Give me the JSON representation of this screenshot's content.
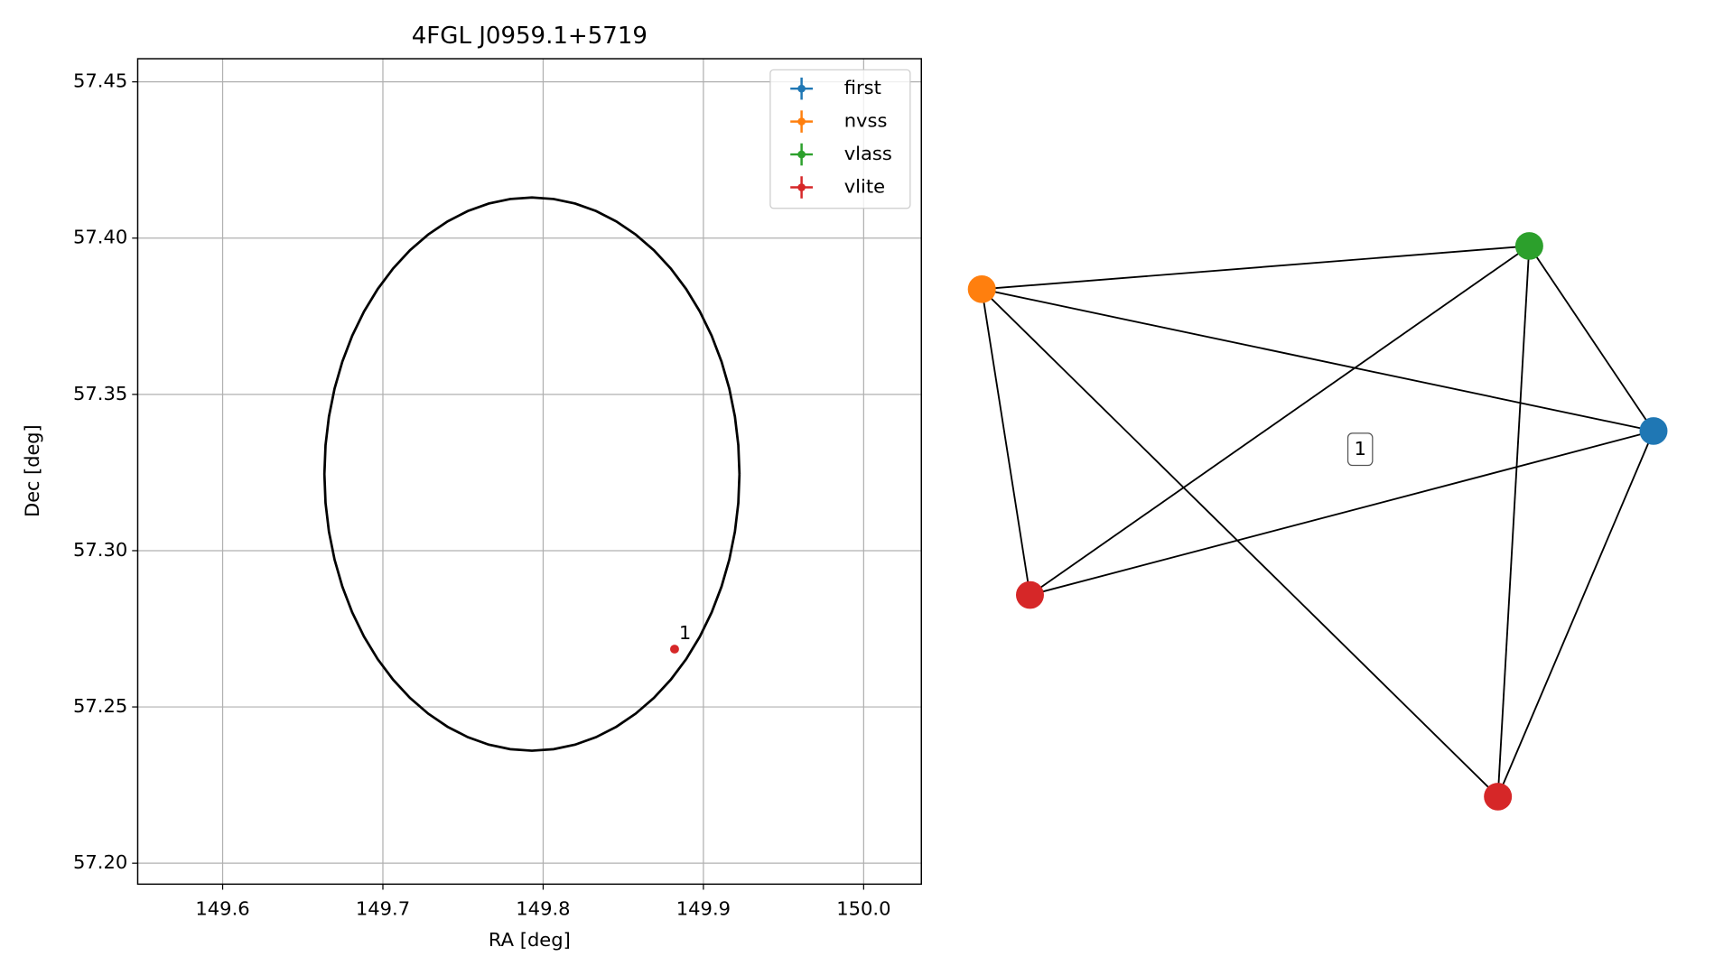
{
  "chart_data": {
    "type": "scatter",
    "title": "4FGL J0959.1+5719",
    "xlabel": "RA [deg]",
    "ylabel": "Dec [deg]",
    "xlim": [
      149.547,
      150.036
    ],
    "ylim": [
      57.1933,
      57.4574
    ],
    "xticks": [
      149.6,
      149.7,
      149.8,
      149.9,
      {
        "value": 150,
        "label": "150.0"
      }
    ],
    "yticks": [
      {
        "value": 57.2,
        "label": "57.20"
      },
      57.25,
      {
        "value": 57.3,
        "label": "57.30"
      },
      57.35,
      {
        "value": 57.4,
        "label": "57.40"
      },
      57.45
    ],
    "grid": true,
    "legend": "upper right",
    "ellipse": {
      "center": [
        149.793,
        57.3245
      ],
      "semi_axes": [
        0.1295,
        0.0885
      ],
      "color": "#000000"
    },
    "series": [
      {
        "name": "first",
        "color": "#1f77b4",
        "x": [],
        "y": []
      },
      {
        "name": "nvss",
        "color": "#ff7f0e",
        "x": [],
        "y": []
      },
      {
        "name": "vlass",
        "color": "#2ca02c",
        "x": [],
        "y": []
      },
      {
        "name": "vlite",
        "color": "#d62728",
        "x": [
          149.882
        ],
        "y": [
          57.2685
        ],
        "point_labels": [
          "1"
        ]
      }
    ]
  },
  "graph": {
    "label": "1",
    "nodes": [
      {
        "color": "#ff7f0e"
      },
      {
        "color": "#2ca02c"
      },
      {
        "color": "#1f77b4"
      },
      {
        "color": "#d62728"
      },
      {
        "color": "#d62728"
      }
    ],
    "edges": [
      [
        0,
        1
      ],
      [
        0,
        2
      ],
      [
        0,
        3
      ],
      [
        0,
        4
      ],
      [
        1,
        3
      ],
      [
        1,
        2
      ],
      [
        1,
        4
      ],
      [
        2,
        3
      ],
      [
        2,
        4
      ]
    ]
  }
}
